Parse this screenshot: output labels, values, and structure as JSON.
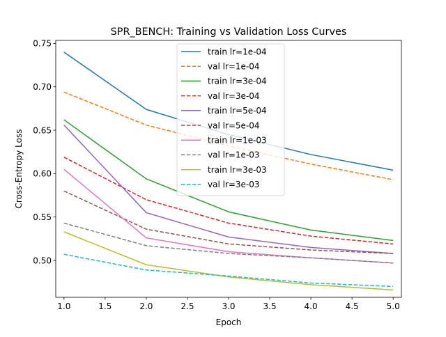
{
  "chart_data": {
    "type": "line",
    "title": "SPR_BENCH: Training vs Validation Loss Curves",
    "xlabel": "Epoch",
    "ylabel": "Cross-Entropy Loss",
    "xlim": [
      0.9,
      5.1
    ],
    "ylim": [
      0.4575,
      0.7535
    ],
    "x_ticks": [
      "1.0",
      "1.5",
      "2.0",
      "2.5",
      "3.0",
      "3.5",
      "4.0",
      "4.5",
      "5.0"
    ],
    "y_ticks": [
      "0.50",
      "0.55",
      "0.60",
      "0.65",
      "0.70",
      "0.75"
    ],
    "grid": false,
    "legend_position": "top-center",
    "x": [
      1,
      2,
      3,
      4,
      5
    ],
    "series": [
      {
        "name": "train lr=1e-04",
        "values": [
          0.74,
          0.674,
          0.645,
          0.622,
          0.604
        ],
        "color": "#1f77b4",
        "style": "solid"
      },
      {
        "name": "val lr=1e-04",
        "values": [
          0.694,
          0.656,
          0.632,
          0.611,
          0.593
        ],
        "color": "#ff7f0e",
        "style": "dashed"
      },
      {
        "name": "train lr=3e-04",
        "values": [
          0.662,
          0.594,
          0.556,
          0.535,
          0.523
        ],
        "color": "#2ca02c",
        "style": "solid"
      },
      {
        "name": "val lr=3e-04",
        "values": [
          0.619,
          0.57,
          0.543,
          0.528,
          0.519
        ],
        "color": "#d62728",
        "style": "dashed"
      },
      {
        "name": "train lr=5e-04",
        "values": [
          0.656,
          0.555,
          0.527,
          0.515,
          0.508
        ],
        "color": "#9467bd",
        "style": "solid"
      },
      {
        "name": "val lr=5e-04",
        "values": [
          0.58,
          0.536,
          0.519,
          0.512,
          0.508
        ],
        "color": "#8c564b",
        "style": "dashed"
      },
      {
        "name": "train lr=1e-03",
        "values": [
          0.605,
          0.526,
          0.51,
          0.503,
          0.497
        ],
        "color": "#e377c2",
        "style": "solid"
      },
      {
        "name": "val lr=1e-03",
        "values": [
          0.543,
          0.517,
          0.508,
          0.503,
          0.497
        ],
        "color": "#7f7f7f",
        "style": "dashed"
      },
      {
        "name": "train lr=3e-03",
        "values": [
          0.533,
          0.495,
          0.481,
          0.472,
          0.466
        ],
        "color": "#bcbd22",
        "style": "solid"
      },
      {
        "name": "val lr=3e-03",
        "values": [
          0.507,
          0.489,
          0.482,
          0.474,
          0.47
        ],
        "color": "#17becf",
        "style": "dashed"
      }
    ]
  }
}
